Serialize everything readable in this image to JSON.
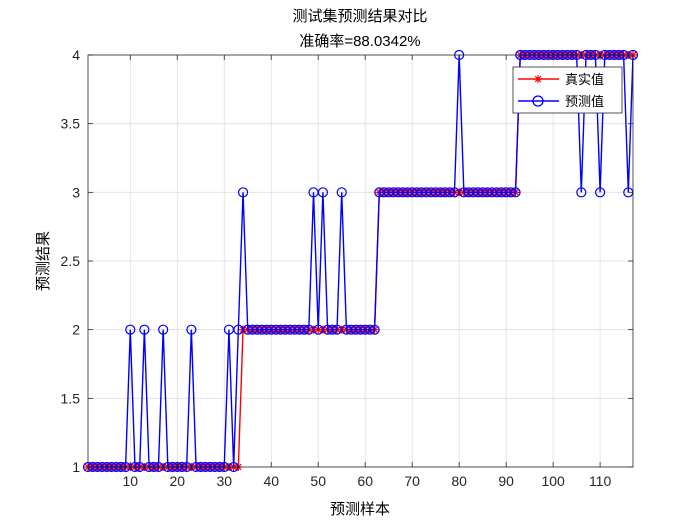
{
  "chart_data": {
    "type": "line",
    "title": "测试集预测结果对比",
    "subtitle": "准确率=88.0342%",
    "xlabel": "预测样本",
    "ylabel": "预测结果",
    "xlim": [
      1,
      117
    ],
    "ylim": [
      1,
      4
    ],
    "xticks": [
      10,
      20,
      30,
      40,
      50,
      60,
      70,
      80,
      90,
      100,
      110
    ],
    "yticks": [
      1,
      1.5,
      2,
      2.5,
      3,
      3.5,
      4
    ],
    "grid": true,
    "legend_position": "top-right",
    "x": [
      1,
      2,
      3,
      4,
      5,
      6,
      7,
      8,
      9,
      10,
      11,
      12,
      13,
      14,
      15,
      16,
      17,
      18,
      19,
      20,
      21,
      22,
      23,
      24,
      25,
      26,
      27,
      28,
      29,
      30,
      31,
      32,
      33,
      34,
      35,
      36,
      37,
      38,
      39,
      40,
      41,
      42,
      43,
      44,
      45,
      46,
      47,
      48,
      49,
      50,
      51,
      52,
      53,
      54,
      55,
      56,
      57,
      58,
      59,
      60,
      61,
      62,
      63,
      64,
      65,
      66,
      67,
      68,
      69,
      70,
      71,
      72,
      73,
      74,
      75,
      76,
      77,
      78,
      79,
      80,
      81,
      82,
      83,
      84,
      85,
      86,
      87,
      88,
      89,
      90,
      91,
      92,
      93,
      94,
      95,
      96,
      97,
      98,
      99,
      100,
      101,
      102,
      103,
      104,
      105,
      106,
      107,
      108,
      109,
      110,
      111,
      112,
      113,
      114,
      115,
      116,
      117
    ],
    "series": [
      {
        "name": "真实值",
        "color": "#ff0000",
        "marker": "asterisk",
        "values": [
          1,
          1,
          1,
          1,
          1,
          1,
          1,
          1,
          1,
          1,
          1,
          1,
          1,
          1,
          1,
          1,
          1,
          1,
          1,
          1,
          1,
          1,
          1,
          1,
          1,
          1,
          1,
          1,
          1,
          1,
          1,
          1,
          1,
          2,
          2,
          2,
          2,
          2,
          2,
          2,
          2,
          2,
          2,
          2,
          2,
          2,
          2,
          2,
          2,
          2,
          2,
          2,
          2,
          2,
          2,
          2,
          2,
          2,
          2,
          2,
          2,
          2,
          3,
          3,
          3,
          3,
          3,
          3,
          3,
          3,
          3,
          3,
          3,
          3,
          3,
          3,
          3,
          3,
          3,
          3,
          3,
          3,
          3,
          3,
          3,
          3,
          3,
          3,
          3,
          3,
          3,
          3,
          4,
          4,
          4,
          4,
          4,
          4,
          4,
          4,
          4,
          4,
          4,
          4,
          4,
          4,
          4,
          4,
          4,
          4,
          4,
          4,
          4,
          4,
          4,
          4,
          4
        ]
      },
      {
        "name": "预测值",
        "color": "#0000ff",
        "marker": "circle",
        "values": [
          1,
          1,
          1,
          1,
          1,
          1,
          1,
          1,
          1,
          2,
          1,
          1,
          2,
          1,
          1,
          1,
          2,
          1,
          1,
          1,
          1,
          1,
          2,
          1,
          1,
          1,
          1,
          1,
          1,
          1,
          2,
          1,
          2,
          3,
          2,
          2,
          2,
          2,
          2,
          2,
          2,
          2,
          2,
          2,
          2,
          2,
          2,
          2,
          3,
          2,
          3,
          2,
          2,
          2,
          3,
          2,
          2,
          2,
          2,
          2,
          2,
          2,
          3,
          3,
          3,
          3,
          3,
          3,
          3,
          3,
          3,
          3,
          3,
          3,
          3,
          3,
          3,
          3,
          3,
          4,
          3,
          3,
          3,
          3,
          3,
          3,
          3,
          3,
          3,
          3,
          3,
          3,
          4,
          4,
          4,
          4,
          4,
          4,
          4,
          4,
          4,
          4,
          4,
          4,
          4,
          3,
          4,
          4,
          4,
          3,
          4,
          4,
          4,
          4,
          4,
          3,
          4
        ]
      }
    ]
  }
}
